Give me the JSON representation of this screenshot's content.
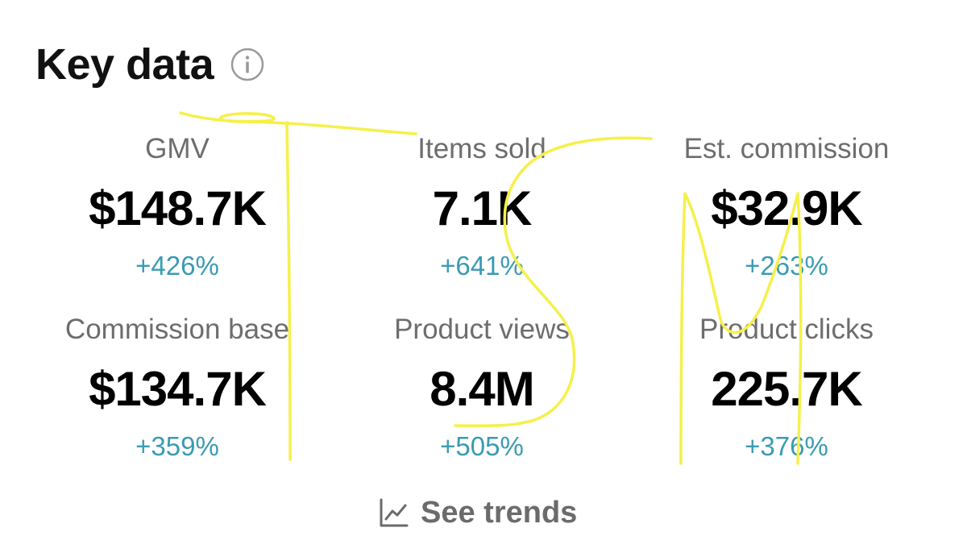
{
  "header": {
    "title": "Key data",
    "info_icon": "info-icon"
  },
  "metrics": [
    {
      "label": "GMV",
      "value": "$148.7K",
      "change": "+426%"
    },
    {
      "label": "Items sold",
      "value": "7.1K",
      "change": "+641%"
    },
    {
      "label": "Est. commission",
      "value": "$32.9K",
      "change": "+263%"
    },
    {
      "label": "Commission base",
      "value": "$134.7K",
      "change": "+359%"
    },
    {
      "label": "Product views",
      "value": "8.4M",
      "change": "+505%"
    },
    {
      "label": "Product clicks",
      "value": "225.7K",
      "change": "+376%"
    }
  ],
  "footer": {
    "trends_label": "See trends",
    "trends_icon": "line-chart-icon"
  },
  "colors": {
    "change_positive": "#3a9bb2",
    "label_gray": "#6d6d6d",
    "annotation_yellow": "#f5f04a"
  }
}
